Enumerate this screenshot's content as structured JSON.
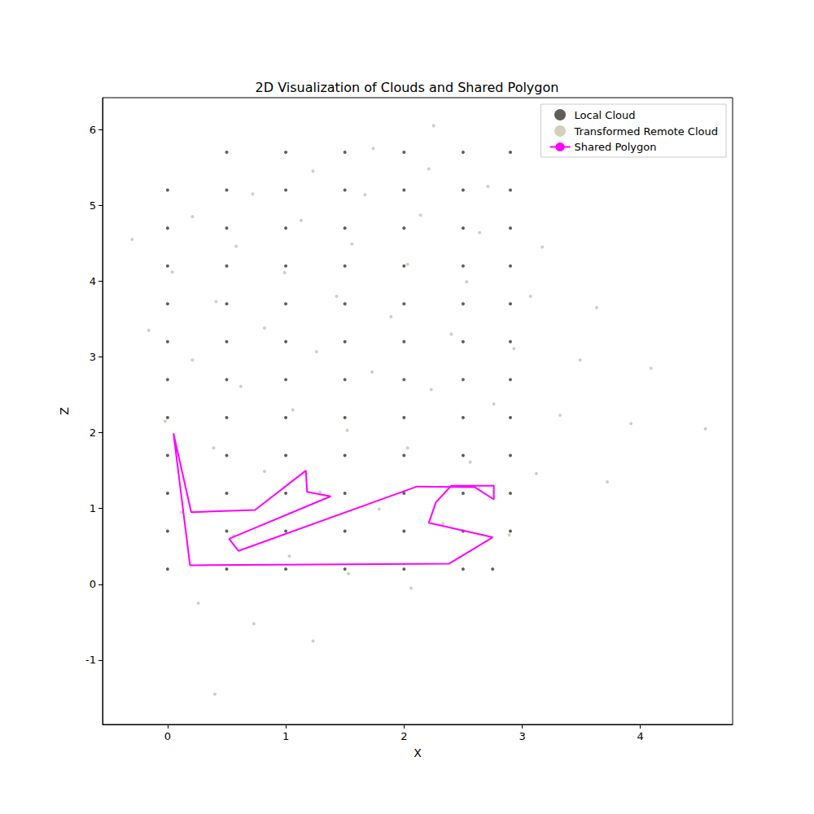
{
  "chart_data": {
    "type": "scatter",
    "title": "2D Visualization of Clouds and Shared Polygon",
    "x_label": "X",
    "y_label": "Z",
    "xlim": [
      -0.55,
      4.78
    ],
    "ylim": [
      -1.85,
      6.42
    ],
    "xticks": [
      0,
      1,
      2,
      3,
      4
    ],
    "yticks": [
      -1,
      0,
      1,
      2,
      3,
      4,
      5,
      6
    ],
    "grid": false,
    "legend": "upper right",
    "series": [
      {
        "name": "Local Cloud",
        "type": "scatter",
        "marker": "o",
        "color": "#4f4d47",
        "x": [
          0,
          0.5,
          1,
          1.5,
          2,
          2.5,
          2.75,
          0,
          0.5,
          1,
          1.5,
          2,
          2.5,
          2.9,
          0,
          0.5,
          1,
          1.5,
          2,
          2.5,
          2.9,
          0,
          0.5,
          1,
          1.5,
          2,
          2.5,
          2.9,
          0,
          0.5,
          1,
          1.5,
          2,
          2.5,
          2.9,
          0,
          0.5,
          1,
          1.5,
          2,
          2.5,
          2.9,
          0,
          0.5,
          1,
          1.5,
          2,
          2.5,
          2.9,
          0,
          0.5,
          1,
          1.5,
          2,
          2.5,
          2.9,
          0,
          0.5,
          1,
          1.5,
          2,
          2.5,
          2.9,
          0,
          0.5,
          1,
          1.5,
          2,
          2.5,
          2.9,
          0,
          0.5,
          1,
          1.5,
          2,
          2.5,
          2.9,
          0.5,
          1,
          1.5,
          2,
          2.5,
          2.9
        ],
        "values": [
          0.2,
          0.2,
          0.2,
          0.2,
          0.2,
          0.2,
          0.2,
          0.7,
          0.7,
          0.7,
          0.7,
          0.7,
          0.7,
          0.7,
          1.2,
          1.2,
          1.2,
          1.2,
          1.2,
          1.2,
          1.2,
          1.7,
          1.7,
          1.7,
          1.7,
          1.7,
          1.7,
          1.7,
          2.2,
          2.2,
          2.2,
          2.2,
          2.2,
          2.2,
          2.2,
          2.7,
          2.7,
          2.7,
          2.7,
          2.7,
          2.7,
          2.7,
          3.2,
          3.2,
          3.2,
          3.2,
          3.2,
          3.2,
          3.2,
          3.7,
          3.7,
          3.7,
          3.7,
          3.7,
          3.7,
          3.7,
          4.2,
          4.2,
          4.2,
          4.2,
          4.2,
          4.2,
          4.2,
          4.7,
          4.7,
          4.7,
          4.7,
          4.7,
          4.7,
          4.7,
          5.2,
          5.2,
          5.2,
          5.2,
          5.2,
          5.2,
          5.2,
          5.7,
          5.7,
          5.7,
          5.7,
          5.7,
          5.7
        ]
      },
      {
        "name": "Transformed Remote Cloud",
        "type": "scatter",
        "marker": "o",
        "color": "#cfc9b6",
        "x": [
          0.4,
          1.23,
          2.06,
          2.89,
          3.72,
          4.55,
          0.26,
          1.03,
          1.79,
          2.56,
          3.32,
          4.09,
          0.12,
          0.82,
          1.52,
          2.23,
          2.93,
          3.63,
          -0.02,
          0.62,
          1.26,
          1.89,
          2.53,
          3.17,
          -0.16,
          0.41,
          0.99,
          1.56,
          2.14,
          2.71,
          -0.3,
          0.21,
          0.72,
          1.23,
          1.74,
          2.25,
          0.73,
          1.53,
          2.33,
          3.12,
          3.92,
          0.56,
          1.29,
          2.03,
          2.76,
          3.49,
          0.39,
          1.06,
          1.73,
          2.4,
          3.07,
          0.21,
          0.82,
          1.43,
          2.03,
          2.64,
          0.04,
          0.58,
          1.13,
          1.67,
          2.21
        ],
        "values": [
          -1.45,
          -0.75,
          -0.05,
          0.65,
          1.35,
          2.05,
          -0.25,
          0.37,
          0.99,
          1.61,
          2.23,
          2.85,
          0.95,
          1.49,
          2.03,
          2.57,
          3.11,
          3.65,
          2.15,
          2.61,
          3.07,
          3.53,
          3.99,
          4.45,
          3.35,
          3.73,
          4.11,
          4.49,
          4.87,
          5.25,
          4.55,
          4.85,
          5.15,
          5.45,
          5.75,
          6.05,
          -0.52,
          0.14,
          0.8,
          1.46,
          2.12,
          0.64,
          1.22,
          1.8,
          2.38,
          2.96,
          1.8,
          2.3,
          2.8,
          3.3,
          3.8,
          2.96,
          3.38,
          3.8,
          4.22,
          4.64,
          4.12,
          4.46,
          4.8,
          5.14,
          5.48
        ]
      },
      {
        "name": "Shared Polygon",
        "type": "line",
        "line_style": "solid",
        "color": "#ff00ff",
        "x": [
          0.05,
          0.19,
          2.38,
          2.75,
          2.21,
          2.27,
          2.4,
          2.76,
          2.76,
          2.6,
          2.11,
          0.6,
          0.52,
          1.38,
          1.18,
          1.17,
          0.74,
          0.2,
          0.05
        ],
        "values": [
          1.99,
          0.25,
          0.27,
          0.62,
          0.81,
          1.08,
          1.3,
          1.3,
          1.12,
          1.28,
          1.29,
          0.44,
          0.6,
          1.16,
          1.22,
          1.5,
          0.98,
          0.95,
          1.99
        ]
      }
    ]
  }
}
